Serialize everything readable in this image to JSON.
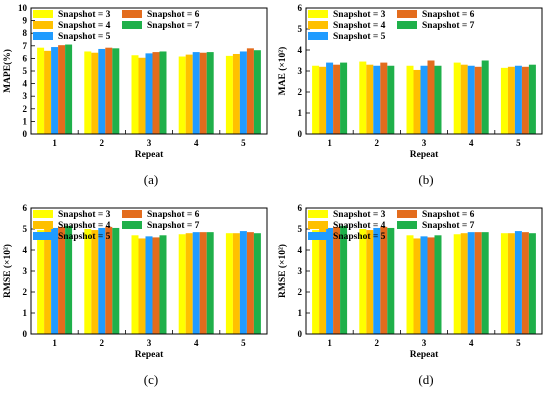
{
  "colors": {
    "Snapshot = 3": "#ffff00",
    "Snapshot = 4": "#ffc000",
    "Snapshot = 5": "#1f9bff",
    "Snapshot = 6": "#e36c1d",
    "Snapshot = 7": "#1fb04a"
  },
  "chart_data": [
    {
      "type": "bar",
      "caption": "(a)",
      "xlabel": "Repeat",
      "ylabel": "MAPE(%)",
      "ylim": [
        0,
        10
      ],
      "yticks": [
        0,
        1,
        2,
        3,
        4,
        5,
        6,
        7,
        8,
        9,
        10
      ],
      "legend_placement": "top",
      "categories": [
        "1",
        "2",
        "3",
        "4",
        "5"
      ],
      "series": [
        {
          "name": "Snapshot = 3",
          "values": [
            6.85,
            6.55,
            6.25,
            6.15,
            6.2
          ]
        },
        {
          "name": "Snapshot = 4",
          "values": [
            6.6,
            6.45,
            6.05,
            6.3,
            6.35
          ]
        },
        {
          "name": "Snapshot = 5",
          "values": [
            6.9,
            6.75,
            6.4,
            6.5,
            6.55
          ]
        },
        {
          "name": "Snapshot = 6",
          "values": [
            7.05,
            6.85,
            6.5,
            6.45,
            6.8
          ]
        },
        {
          "name": "Snapshot = 7",
          "values": [
            7.1,
            6.8,
            6.55,
            6.5,
            6.65
          ]
        }
      ]
    },
    {
      "type": "bar",
      "caption": "(b)",
      "xlabel": "Repeat",
      "ylabel": "MAE (×10²)",
      "ylim": [
        0,
        6
      ],
      "yticks": [
        0,
        1,
        2,
        3,
        4,
        5,
        6
      ],
      "legend_placement": "top",
      "categories": [
        "1",
        "2",
        "3",
        "4",
        "5"
      ],
      "series": [
        {
          "name": "Snapshot = 3",
          "values": [
            3.25,
            3.45,
            3.25,
            3.4,
            3.15
          ]
        },
        {
          "name": "Snapshot = 4",
          "values": [
            3.2,
            3.3,
            3.05,
            3.3,
            3.2
          ]
        },
        {
          "name": "Snapshot = 5",
          "values": [
            3.4,
            3.25,
            3.25,
            3.25,
            3.25
          ]
        },
        {
          "name": "Snapshot = 6",
          "values": [
            3.3,
            3.4,
            3.5,
            3.2,
            3.2
          ]
        },
        {
          "name": "Snapshot = 7",
          "values": [
            3.4,
            3.25,
            3.25,
            3.5,
            3.3
          ]
        }
      ]
    },
    {
      "type": "bar",
      "caption": "(c)",
      "xlabel": "Repeat",
      "ylabel": "RMSE (×10²)",
      "ylim": [
        0,
        6
      ],
      "yticks": [
        0,
        1,
        2,
        3,
        4,
        5,
        6
      ],
      "legend_placement": "top",
      "categories": [
        "1",
        "2",
        "3",
        "4",
        "5"
      ],
      "series": [
        {
          "name": "Snapshot = 3",
          "values": [
            4.95,
            5.0,
            4.7,
            4.75,
            4.8
          ]
        },
        {
          "name": "Snapshot = 4",
          "values": [
            5.0,
            4.95,
            4.55,
            4.8,
            4.8
          ]
        },
        {
          "name": "Snapshot = 5",
          "values": [
            5.05,
            5.05,
            4.65,
            4.85,
            4.9
          ]
        },
        {
          "name": "Snapshot = 6",
          "values": [
            5.1,
            5.1,
            4.6,
            4.85,
            4.85
          ]
        },
        {
          "name": "Snapshot = 7",
          "values": [
            5.15,
            5.05,
            4.7,
            4.85,
            4.8
          ]
        }
      ]
    },
    {
      "type": "bar",
      "caption": "(d)",
      "xlabel": "Repeat",
      "ylabel": "RMSE (×10²)",
      "ylim": [
        0,
        6
      ],
      "yticks": [
        0,
        1,
        2,
        3,
        4,
        5,
        6
      ],
      "legend_placement": "top",
      "categories": [
        "1",
        "2",
        "3",
        "4",
        "5"
      ],
      "series": [
        {
          "name": "Snapshot = 3",
          "values": [
            4.95,
            5.0,
            4.7,
            4.75,
            4.8
          ]
        },
        {
          "name": "Snapshot = 4",
          "values": [
            5.0,
            4.95,
            4.55,
            4.8,
            4.8
          ]
        },
        {
          "name": "Snapshot = 5",
          "values": [
            5.05,
            5.05,
            4.65,
            4.85,
            4.9
          ]
        },
        {
          "name": "Snapshot = 6",
          "values": [
            5.1,
            5.1,
            4.6,
            4.85,
            4.85
          ]
        },
        {
          "name": "Snapshot = 7",
          "values": [
            5.15,
            5.05,
            4.7,
            4.85,
            4.8
          ]
        }
      ]
    }
  ]
}
